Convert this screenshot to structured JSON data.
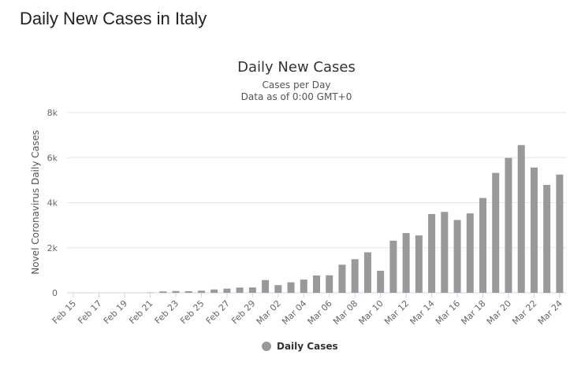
{
  "heading": "Daily New Cases in Italy",
  "chart_data": {
    "type": "bar",
    "title": "Daily New Cases",
    "subtitle": [
      "Cases per Day",
      "Data as of 0:00 GMT+0"
    ],
    "y_label": "Novel Coronavirus Daily Cases",
    "categories": [
      "Feb 15",
      null,
      "Feb 17",
      null,
      "Feb 19",
      null,
      "Feb 21",
      null,
      "Feb 23",
      null,
      "Feb 25",
      null,
      "Feb 27",
      null,
      "Feb 29",
      null,
      "Mar 02",
      null,
      "Mar 04",
      null,
      "Mar 06",
      null,
      "Mar 08",
      null,
      "Mar 10",
      null,
      "Mar 12",
      null,
      "Mar 14",
      null,
      "Mar 16",
      null,
      "Mar 18",
      null,
      "Mar 20",
      null,
      "Mar 22",
      null,
      "Mar 24"
    ],
    "series": [
      {
        "name": "Daily Cases",
        "color": "#999999",
        "values": [
          0,
          0,
          0,
          0,
          0,
          0,
          17,
          62,
          78,
          72,
          94,
          147,
          185,
          234,
          239,
          566,
          342,
          466,
          587,
          769,
          778,
          1247,
          1492,
          1797,
          977,
          2313,
          2651,
          2547,
          3497,
          3590,
          3233,
          3526,
          4207,
          5322,
          5986,
          6557,
          5560,
          4789,
          5249
        ]
      }
    ],
    "ylim": [
      0,
      8000
    ],
    "yticks": [
      0,
      {
        "value": 2000,
        "label": "2k"
      },
      {
        "value": 4000,
        "label": "4k"
      },
      {
        "value": 6000,
        "label": "6k"
      },
      {
        "value": 8000,
        "label": "8k"
      }
    ],
    "grid": true,
    "legend": "bottom"
  }
}
